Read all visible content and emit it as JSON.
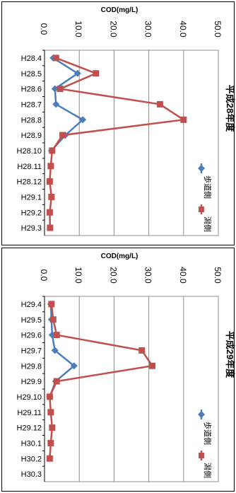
{
  "chart_data": [
    {
      "type": "line",
      "title": "平成28年度",
      "ylabel": "COD(mg/L)",
      "ylim": [
        0,
        50
      ],
      "y_ticks": [
        "0.0",
        "10.0",
        "20.0",
        "30.0",
        "40.0",
        "50.0"
      ],
      "categories": [
        "H28.4",
        "H28.5",
        "H28.6",
        "H28.7",
        "H28.8",
        "H28.9",
        "H28.10",
        "H28.11",
        "H28.12",
        "H29.1",
        "H29.2",
        "H29.3"
      ],
      "grid": true,
      "legend": "right",
      "series": [
        {
          "name": "歩道側",
          "color": "#4a7ebb",
          "marker": "diamond",
          "values": [
            2.5,
            9.5,
            3.0,
            3.3,
            11.0,
            6.0,
            2.0,
            null,
            null,
            null,
            null,
            null
          ]
        },
        {
          "name": "潟側",
          "color": "#c0504d",
          "marker": "square",
          "values": [
            3.3,
            14.8,
            4.5,
            33.2,
            40.0,
            5.2,
            2.2,
            1.8,
            1.5,
            2.0,
            1.5,
            1.6
          ]
        }
      ]
    },
    {
      "type": "line",
      "title": "平成29年度",
      "ylabel": "COD(mg/L)",
      "ylim": [
        0,
        50
      ],
      "y_ticks": [
        "0.0",
        "10.0",
        "20.0",
        "30.0",
        "40.0",
        "50.0"
      ],
      "categories": [
        "H29.4",
        "H29.5",
        "H29.6",
        "H29.7",
        "H29.8",
        "H29.9",
        "H29.10",
        "H29.11",
        "H29.12",
        "H30.1",
        "H30.2",
        "H30.3"
      ],
      "grid": true,
      "legend": "right",
      "series": [
        {
          "name": "歩道側",
          "color": "#4a7ebb",
          "marker": "diamond",
          "values": [
            1.8,
            2.0,
            2.2,
            3.0,
            8.5,
            3.2,
            1.5,
            null,
            null,
            null,
            null,
            null
          ]
        },
        {
          "name": "潟側",
          "color": "#c0504d",
          "marker": "square",
          "values": [
            2.0,
            2.5,
            3.5,
            28.0,
            31.0,
            3.5,
            1.5,
            1.8,
            2.2,
            1.8,
            1.5,
            null
          ]
        }
      ]
    }
  ]
}
